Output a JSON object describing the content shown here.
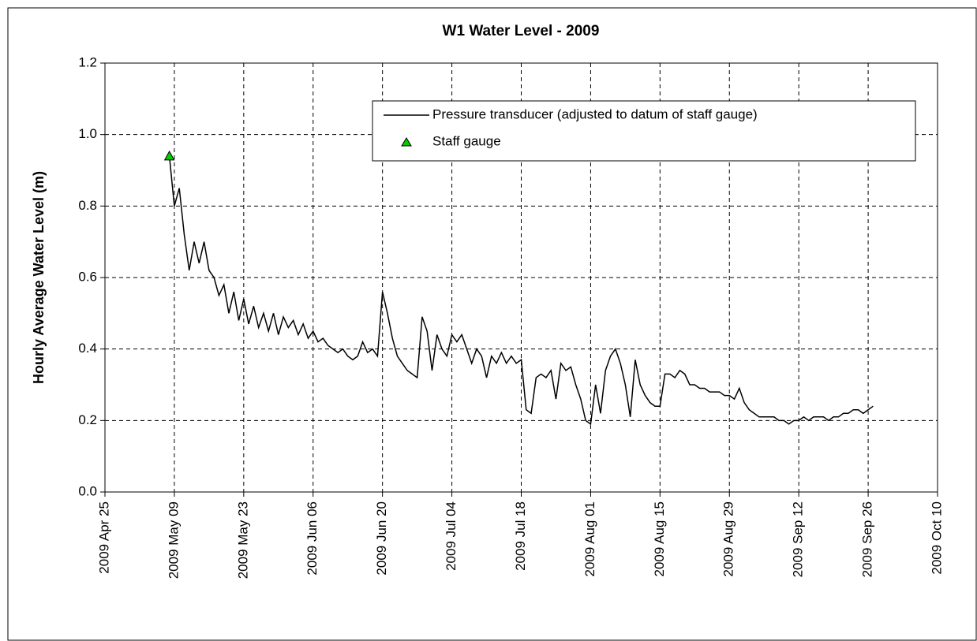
{
  "chart_data": {
    "type": "line",
    "title": "W1 Water Level - 2009",
    "ylabel": "Hourly Average Water Level (m)",
    "xlim": [
      "2009-04-25",
      "2009-10-10"
    ],
    "xticks": [
      {
        "value": "2009-04-25",
        "label": "2009 Apr 25"
      },
      {
        "value": "2009-05-09",
        "label": "2009 May 09"
      },
      {
        "value": "2009-05-23",
        "label": "2009 May 23"
      },
      {
        "value": "2009-06-06",
        "label": "2009 Jun 06"
      },
      {
        "value": "2009-06-20",
        "label": "2009 Jun 20"
      },
      {
        "value": "2009-07-04",
        "label": "2009 Jul 04"
      },
      {
        "value": "2009-07-18",
        "label": "2009 Jul 18"
      },
      {
        "value": "2009-08-01",
        "label": "2009 Aug 01"
      },
      {
        "value": "2009-08-15",
        "label": "2009 Aug 15"
      },
      {
        "value": "2009-08-29",
        "label": "2009 Aug 29"
      },
      {
        "value": "2009-09-12",
        "label": "2009 Sep 12"
      },
      {
        "value": "2009-09-26",
        "label": "2009 Sep 26"
      },
      {
        "value": "2009-10-10",
        "label": "2009 Oct 10"
      }
    ],
    "ylim": [
      0,
      1.2
    ],
    "yticks": [
      {
        "value": 0,
        "label": "0.0"
      },
      {
        "value": 0.2,
        "label": "0.2"
      },
      {
        "value": 0.4,
        "label": "0.4"
      },
      {
        "value": 0.6,
        "label": "0.6"
      },
      {
        "value": 0.8,
        "label": "0.8"
      },
      {
        "value": 1,
        "label": "1.0"
      },
      {
        "value": 1.2,
        "label": "1.2"
      }
    ],
    "grid": true,
    "legend": "upper right",
    "series": [
      {
        "name": "Pressure transducer (adjusted to datum of staff gauge)",
        "type": "line",
        "color": "#000000",
        "x": [
          "2009-05-08",
          "2009-05-09",
          "2009-05-10",
          "2009-05-11",
          "2009-05-12",
          "2009-05-13",
          "2009-05-14",
          "2009-05-15",
          "2009-05-16",
          "2009-05-17",
          "2009-05-18",
          "2009-05-19",
          "2009-05-20",
          "2009-05-21",
          "2009-05-22",
          "2009-05-23",
          "2009-05-24",
          "2009-05-25",
          "2009-05-26",
          "2009-05-27",
          "2009-05-28",
          "2009-05-29",
          "2009-05-30",
          "2009-05-31",
          "2009-06-01",
          "2009-06-02",
          "2009-06-03",
          "2009-06-04",
          "2009-06-05",
          "2009-06-06",
          "2009-06-07",
          "2009-06-08",
          "2009-06-09",
          "2009-06-10",
          "2009-06-11",
          "2009-06-12",
          "2009-06-13",
          "2009-06-14",
          "2009-06-15",
          "2009-06-16",
          "2009-06-17",
          "2009-06-18",
          "2009-06-19",
          "2009-06-20",
          "2009-06-21",
          "2009-06-22",
          "2009-06-23",
          "2009-06-24",
          "2009-06-25",
          "2009-06-26",
          "2009-06-27",
          "2009-06-28",
          "2009-06-29",
          "2009-06-30",
          "2009-07-01",
          "2009-07-02",
          "2009-07-03",
          "2009-07-04",
          "2009-07-05",
          "2009-07-06",
          "2009-07-07",
          "2009-07-08",
          "2009-07-09",
          "2009-07-10",
          "2009-07-11",
          "2009-07-12",
          "2009-07-13",
          "2009-07-14",
          "2009-07-15",
          "2009-07-16",
          "2009-07-17",
          "2009-07-18",
          "2009-07-19",
          "2009-07-20",
          "2009-07-21",
          "2009-07-22",
          "2009-07-23",
          "2009-07-24",
          "2009-07-25",
          "2009-07-26",
          "2009-07-27",
          "2009-07-28",
          "2009-07-29",
          "2009-07-30",
          "2009-07-31",
          "2009-08-01",
          "2009-08-02",
          "2009-08-03",
          "2009-08-04",
          "2009-08-05",
          "2009-08-06",
          "2009-08-07",
          "2009-08-08",
          "2009-08-09",
          "2009-08-10",
          "2009-08-11",
          "2009-08-12",
          "2009-08-13",
          "2009-08-14",
          "2009-08-15",
          "2009-08-16",
          "2009-08-17",
          "2009-08-18",
          "2009-08-19",
          "2009-08-20",
          "2009-08-21",
          "2009-08-22",
          "2009-08-23",
          "2009-08-24",
          "2009-08-25",
          "2009-08-26",
          "2009-08-27",
          "2009-08-28",
          "2009-08-29",
          "2009-08-30",
          "2009-08-31",
          "2009-09-01",
          "2009-09-02",
          "2009-09-03",
          "2009-09-04",
          "2009-09-05",
          "2009-09-06",
          "2009-09-07",
          "2009-09-08",
          "2009-09-09",
          "2009-09-10",
          "2009-09-11",
          "2009-09-12",
          "2009-09-13",
          "2009-09-14",
          "2009-09-15",
          "2009-09-16",
          "2009-09-17",
          "2009-09-18",
          "2009-09-19",
          "2009-09-20",
          "2009-09-21",
          "2009-09-22",
          "2009-09-23",
          "2009-09-24",
          "2009-09-25",
          "2009-09-26",
          "2009-09-27"
        ],
        "values": [
          0.94,
          0.8,
          0.85,
          0.72,
          0.62,
          0.7,
          0.64,
          0.7,
          0.62,
          0.6,
          0.55,
          0.58,
          0.5,
          0.56,
          0.48,
          0.54,
          0.47,
          0.52,
          0.46,
          0.5,
          0.45,
          0.5,
          0.44,
          0.49,
          0.46,
          0.48,
          0.44,
          0.47,
          0.43,
          0.45,
          0.42,
          0.43,
          0.41,
          0.4,
          0.39,
          0.4,
          0.38,
          0.37,
          0.38,
          0.42,
          0.39,
          0.4,
          0.38,
          0.56,
          0.5,
          0.43,
          0.38,
          0.36,
          0.34,
          0.33,
          0.32,
          0.49,
          0.45,
          0.34,
          0.44,
          0.4,
          0.38,
          0.44,
          0.42,
          0.44,
          0.4,
          0.36,
          0.4,
          0.38,
          0.32,
          0.38,
          0.36,
          0.39,
          0.36,
          0.38,
          0.36,
          0.37,
          0.23,
          0.22,
          0.32,
          0.33,
          0.32,
          0.34,
          0.26,
          0.36,
          0.34,
          0.35,
          0.3,
          0.26,
          0.2,
          0.19,
          0.3,
          0.22,
          0.34,
          0.38,
          0.4,
          0.36,
          0.3,
          0.21,
          0.37,
          0.3,
          0.27,
          0.25,
          0.24,
          0.24,
          0.33,
          0.33,
          0.32,
          0.34,
          0.33,
          0.3,
          0.3,
          0.29,
          0.29,
          0.28,
          0.28,
          0.28,
          0.27,
          0.27,
          0.26,
          0.29,
          0.25,
          0.23,
          0.22,
          0.21,
          0.21,
          0.21,
          0.21,
          0.2,
          0.2,
          0.19,
          0.2,
          0.2,
          0.21,
          0.2,
          0.21,
          0.21,
          0.21,
          0.2,
          0.21,
          0.21,
          0.22,
          0.22,
          0.23,
          0.23,
          0.22,
          0.23,
          0.24
        ]
      },
      {
        "name": "Staff gauge",
        "type": "scatter",
        "color": "#00cc00",
        "x": [
          "2009-05-08"
        ],
        "values": [
          0.94
        ]
      }
    ]
  }
}
